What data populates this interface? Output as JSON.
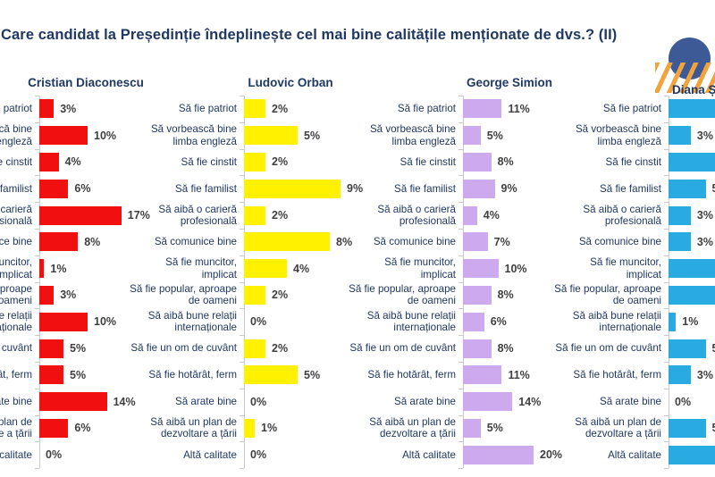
{
  "page": {
    "title": "Care candidat la Președinție îndeplinește cel mai bine calitățile menționate de dvs.? (II)"
  },
  "logo": {
    "name": "brand-logo",
    "circle_color": "#3D5A97",
    "stripe_color": "#F2A33C"
  },
  "chart_data": {
    "type": "bar",
    "orientation": "horizontal",
    "unit": "%",
    "value_label_format": "{v}%",
    "grid": false,
    "categories": [
      "Să fie patriot",
      "Să vorbească bine limba engleză",
      "Să fie cinstit",
      "Să fie familist",
      "Să aibă o carieră profesională",
      "Să comunice bine",
      "Să fie muncitor, implicat",
      "Să fie popular, aproape de oameni",
      "Să aibă bune relații internaționale",
      "Să fie un om de cuvânt",
      "Să fie hotărât, ferm",
      "Să arate bine",
      "Să aibă un plan de dezvoltare a țării",
      "Altă calitate"
    ],
    "series": [
      {
        "name": "Cristian Diaconescu",
        "color": "#F01010",
        "values": [
          3,
          10,
          4,
          6,
          17,
          8,
          1,
          3,
          10,
          5,
          5,
          14,
          6,
          0
        ]
      },
      {
        "name": "Ludovic Orban",
        "color": "#FFF100",
        "values": [
          2,
          5,
          2,
          9,
          2,
          8,
          4,
          2,
          0,
          2,
          5,
          0,
          1,
          0
        ]
      },
      {
        "name": "George Simion",
        "color": "#CDA9EE",
        "values": [
          11,
          5,
          8,
          9,
          4,
          7,
          10,
          8,
          6,
          8,
          11,
          14,
          5,
          20
        ]
      },
      {
        "name": "Diana Șoșoacă",
        "color": "#29ABE2",
        "values": [
          null,
          3,
          null,
          5,
          3,
          3,
          null,
          null,
          1,
          5,
          3,
          0,
          5,
          null
        ],
        "clipped_note": "bars with null values run past the right edge of the visible crop; their labels are not visible"
      }
    ],
    "layout_hint": "four side-by-side horizontal bar panels, category labels right-aligned beside each panel; left panel labels clipped by image edge, right panel bars clipped by image edge"
  }
}
